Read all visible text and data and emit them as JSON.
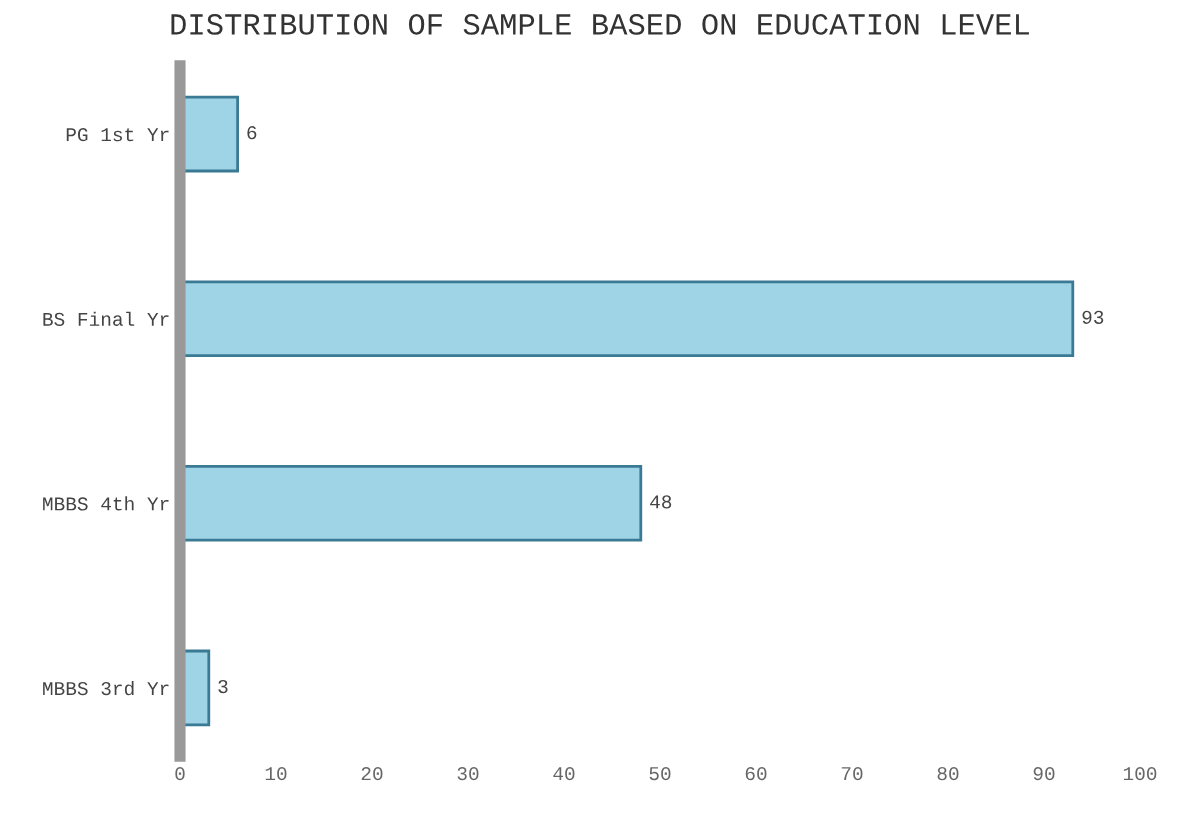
{
  "chart_data": {
    "type": "bar",
    "orientation": "horizontal",
    "title": "DISTRIBUTION OF SAMPLE BASED ON EDUCATION LEVEL",
    "categories": [
      "PG 1st Yr",
      "BS Final Yr",
      "MBBS 4th Yr",
      "MBBS 3rd Yr"
    ],
    "values": [
      6,
      93,
      48,
      3
    ],
    "color": "#9fd3e6",
    "data_labels": true,
    "xlim": [
      0,
      100
    ],
    "xticks": [
      0,
      10,
      20,
      30,
      40,
      50,
      60,
      70,
      80,
      90,
      100
    ],
    "grid": false,
    "legend": false
  }
}
